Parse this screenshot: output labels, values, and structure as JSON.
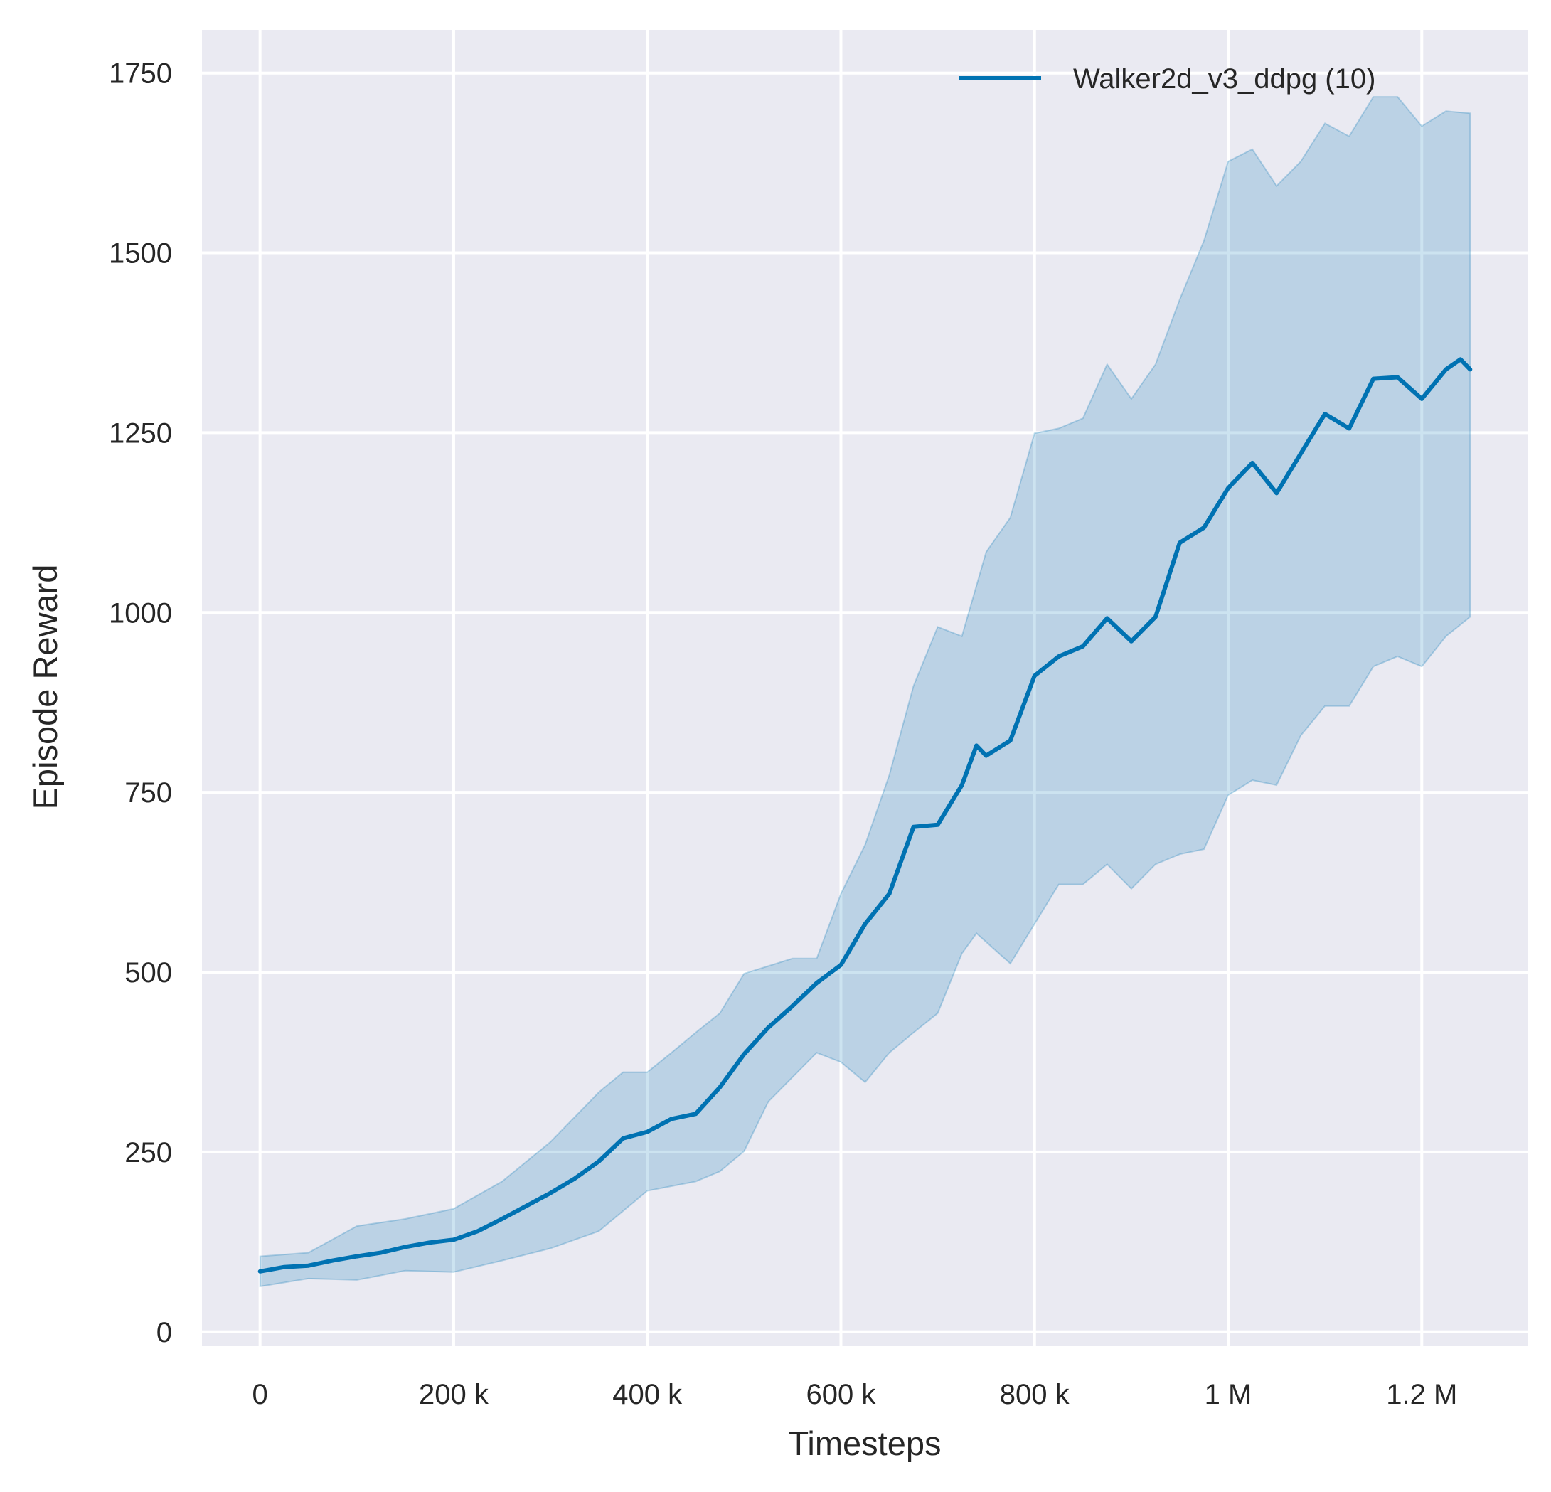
{
  "chart_data": {
    "type": "line",
    "title": "",
    "xlabel": "Timesteps",
    "ylabel": "Episode Reward",
    "xlim": [
      -60000,
      1310000
    ],
    "ylim": [
      -20,
      1810
    ],
    "grid": true,
    "legend_position": "top-right",
    "x_ticks": [
      0,
      200000,
      400000,
      600000,
      800000,
      1000000,
      1200000
    ],
    "x_tick_labels": [
      "0",
      "200 k",
      "400 k",
      "600 k",
      "800 k",
      "1 M",
      "1.2 M"
    ],
    "y_ticks": [
      0,
      250,
      500,
      750,
      1000,
      1250,
      1500,
      1750
    ],
    "y_tick_labels": [
      "0",
      "250",
      "500",
      "750",
      "1000",
      "1250",
      "1500",
      "1750"
    ],
    "colors": {
      "background": "#EAEAF2",
      "line": "#0072B2",
      "band": "#0072B2",
      "grid": "#FFFFFF"
    },
    "series": [
      {
        "name": "Walker2d_v3_ddpg (10)",
        "x": [
          0,
          25000,
          50000,
          75000,
          100000,
          125000,
          150000,
          175000,
          200000,
          225000,
          250000,
          275000,
          300000,
          325000,
          350000,
          375000,
          400000,
          425000,
          450000,
          475000,
          500000,
          525000,
          550000,
          575000,
          600000,
          625000,
          650000,
          675000,
          700000,
          725000,
          740000,
          750000,
          775000,
          800000,
          825000,
          850000,
          875000,
          900000,
          925000,
          950000,
          975000,
          1000000,
          1025000,
          1050000,
          1075000,
          1100000,
          1125000,
          1150000,
          1175000,
          1200000,
          1225000,
          1240000,
          1250000
        ],
        "y": [
          84,
          90,
          92,
          99,
          105,
          110,
          118,
          124,
          128,
          140,
          157,
          175,
          193,
          213,
          237,
          269,
          278,
          296,
          303,
          340,
          386,
          423,
          453,
          485,
          510,
          567,
          609,
          702,
          705,
          760,
          815,
          801,
          822,
          912,
          939,
          953,
          992,
          960,
          994,
          1097,
          1118,
          1173,
          1208,
          1166,
          1221,
          1276,
          1256,
          1325,
          1327,
          1297,
          1338,
          1352,
          1338
        ],
        "band_upper": {
          "x": [
            0,
            50000,
            100000,
            150000,
            200000,
            250000,
            300000,
            350000,
            375000,
            400000,
            425000,
            450000,
            475000,
            500000,
            550000,
            575000,
            600000,
            625000,
            650000,
            675000,
            700000,
            725000,
            750000,
            775000,
            800000,
            825000,
            850000,
            875000,
            900000,
            925000,
            950000,
            975000,
            1000000,
            1025000,
            1050000,
            1075000,
            1100000,
            1125000,
            1150000,
            1175000,
            1200000,
            1225000,
            1250000
          ],
          "y": [
            105,
            110,
            147,
            157,
            171,
            209,
            264,
            333,
            361,
            361,
            388,
            416,
            443,
            498,
            519,
            519,
            609,
            677,
            774,
            898,
            980,
            967,
            1084,
            1132,
            1249,
            1256,
            1270,
            1345,
            1297,
            1345,
            1435,
            1517,
            1627,
            1644,
            1593,
            1627,
            1680,
            1662,
            1717,
            1717,
            1676,
            1697,
            1694
          ]
        },
        "band_lower": {
          "x": [
            0,
            50000,
            100000,
            150000,
            200000,
            250000,
            300000,
            350000,
            375000,
            400000,
            450000,
            475000,
            500000,
            525000,
            550000,
            575000,
            600000,
            625000,
            650000,
            675000,
            700000,
            725000,
            740000,
            775000,
            800000,
            825000,
            850000,
            875000,
            900000,
            925000,
            950000,
            975000,
            1000000,
            1025000,
            1050000,
            1075000,
            1100000,
            1125000,
            1150000,
            1175000,
            1200000,
            1225000,
            1250000
          ],
          "y": [
            63,
            74,
            72,
            85,
            83,
            99,
            116,
            140,
            168,
            196,
            209,
            223,
            251,
            320,
            354,
            388,
            375,
            347,
            388,
            416,
            443,
            526,
            554,
            512,
            567,
            622,
            622,
            650,
            616,
            650,
            664,
            671,
            746,
            767,
            760,
            829,
            870,
            870,
            925,
            939,
            925,
            967,
            994
          ]
        }
      }
    ]
  }
}
